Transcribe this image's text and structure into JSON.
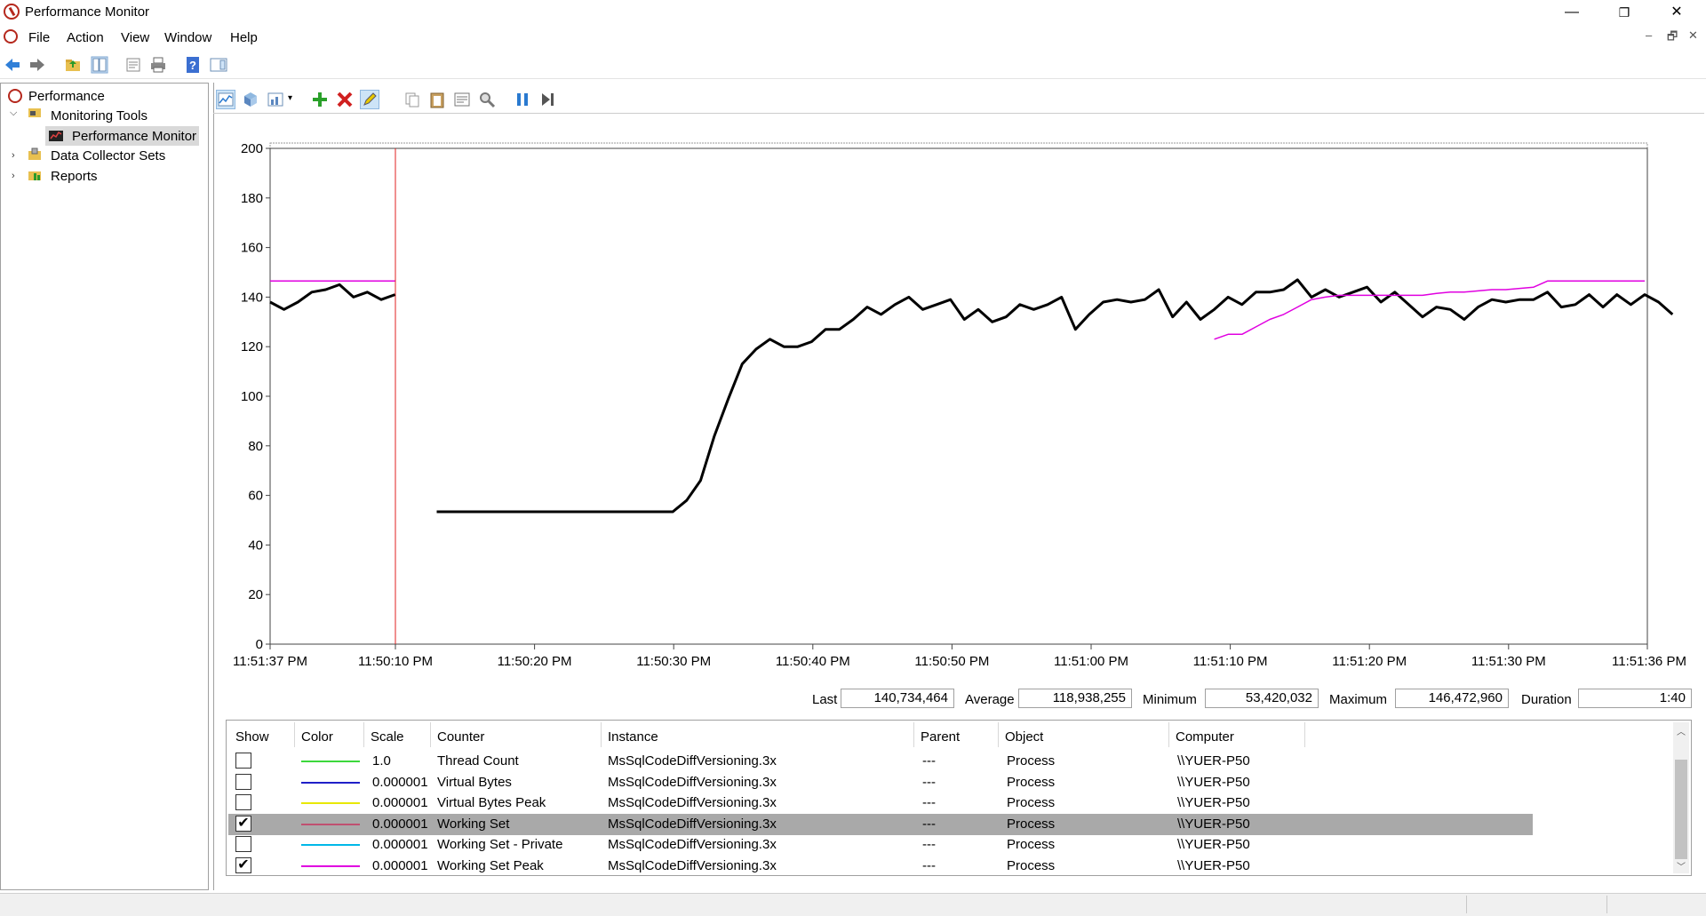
{
  "window": {
    "title": "Performance Monitor",
    "controls": [
      "—",
      "❐",
      "✕"
    ]
  },
  "menu": {
    "items": [
      "File",
      "Action",
      "View",
      "Window",
      "Help"
    ],
    "mdi_controls": [
      "–",
      "🗗",
      "✕"
    ]
  },
  "tree": {
    "root": "Performance",
    "items": [
      {
        "label": "Monitoring Tools",
        "expanded": true
      },
      {
        "label": "Performance Monitor",
        "selected": true
      },
      {
        "label": "Data Collector Sets"
      },
      {
        "label": "Reports"
      }
    ]
  },
  "chart_data": {
    "type": "line",
    "ylim": [
      0,
      200
    ],
    "yticks": [
      "200",
      "180",
      "160",
      "140",
      "120",
      "100",
      "80",
      "60",
      "40",
      "20",
      "0"
    ],
    "xticks": [
      "11:51:37 PM",
      "11:50:10 PM",
      "11:50:20 PM",
      "11:50:30 PM",
      "11:50:40 PM",
      "11:50:50 PM",
      "11:51:00 PM",
      "11:51:10 PM",
      "11:51:20 PM",
      "11:51:30 PM",
      "11:51:36 PM"
    ],
    "grid": false,
    "series": [
      {
        "name": "Working Set",
        "color": "#000000",
        "segment_before_cursor": [
          138,
          135,
          138,
          142,
          143,
          145,
          140,
          142,
          139,
          141
        ],
        "segment_after_cursor": [
          53.4,
          53.4,
          53.4,
          53.4,
          53.4,
          53.4,
          53.4,
          53.4,
          53.4,
          53.4,
          53.4,
          53.4,
          53.4,
          53.4,
          53.4,
          53.4,
          53.4,
          53.4,
          58,
          66,
          84,
          99,
          113,
          119,
          123,
          120,
          120,
          122,
          127,
          127,
          131,
          136,
          133,
          137,
          140,
          135,
          137,
          139,
          131,
          135,
          130,
          132,
          137,
          135,
          137,
          140,
          127,
          133,
          138,
          139,
          138,
          139,
          143,
          132,
          138,
          131,
          135,
          140,
          137,
          142,
          142,
          143,
          147,
          140,
          143,
          140,
          142,
          144,
          138,
          142,
          137,
          132,
          136,
          135,
          131,
          136,
          139,
          138,
          139,
          139,
          142,
          136,
          137,
          141,
          136,
          141,
          137,
          141,
          138,
          133
        ]
      },
      {
        "name": "Working Set Peak",
        "color": "#e000e0",
        "segment_before_cursor": [
          146.5,
          146.5,
          146.5,
          146.5,
          146.5,
          146.5,
          146.5,
          146.5,
          146.5,
          146.5
        ],
        "segment_after_cursor": [
          123,
          125,
          125,
          128,
          131,
          133,
          136,
          139,
          140,
          140.7,
          140.7,
          140.7,
          140.7,
          140.7,
          140.7,
          140.7,
          141.5,
          142,
          142,
          142.5,
          143,
          143,
          143.5,
          144,
          146.5,
          146.5,
          146.5,
          146.5,
          146.5,
          146.5,
          146.5,
          146.5
        ]
      }
    ]
  },
  "stats": {
    "last_label": "Last",
    "last_value": "140,734,464",
    "average_label": "Average",
    "average_value": "118,938,255",
    "minimum_label": "Minimum",
    "minimum_value": "53,420,032",
    "maximum_label": "Maximum",
    "maximum_value": "146,472,960",
    "duration_label": "Duration",
    "duration_value": "1:40"
  },
  "counters": {
    "headers": [
      "Show",
      "Color",
      "Scale",
      "Counter",
      "Instance",
      "Parent",
      "Object",
      "Computer"
    ],
    "rows": [
      {
        "show": false,
        "color": "#3cd83c",
        "scale": "1.0",
        "counter": "Thread Count",
        "instance": "MsSqlCodeDiffVersioning.3x",
        "parent": "---",
        "object": "Process",
        "computer": "\\\\YUER-P50"
      },
      {
        "show": false,
        "color": "#2020c8",
        "scale": "0.000001",
        "counter": "Virtual Bytes",
        "instance": "MsSqlCodeDiffVersioning.3x",
        "parent": "---",
        "object": "Process",
        "computer": "\\\\YUER-P50"
      },
      {
        "show": false,
        "color": "#e8e800",
        "scale": "0.000001",
        "counter": "Virtual Bytes Peak",
        "instance": "MsSqlCodeDiffVersioning.3x",
        "parent": "---",
        "object": "Process",
        "computer": "\\\\YUER-P50"
      },
      {
        "show": true,
        "selected": true,
        "color": "#c05070",
        "scale": "0.000001",
        "counter": "Working Set",
        "instance": "MsSqlCodeDiffVersioning.3x",
        "parent": "---",
        "object": "Process",
        "computer": "\\\\YUER-P50"
      },
      {
        "show": false,
        "color": "#00b8e8",
        "scale": "0.000001",
        "counter": "Working Set - Private",
        "instance": "MsSqlCodeDiffVersioning.3x",
        "parent": "---",
        "object": "Process",
        "computer": "\\\\YUER-P50"
      },
      {
        "show": true,
        "color": "#e000e0",
        "scale": "0.000001",
        "counter": "Working Set Peak",
        "instance": "MsSqlCodeDiffVersioning.3x",
        "parent": "---",
        "object": "Process",
        "computer": "\\\\YUER-P50"
      }
    ]
  },
  "icons": {
    "toolbar1": [
      "back-icon",
      "forward-icon",
      "up-folder-icon",
      "show-hide-tree-icon",
      "properties-icon",
      "print-icon",
      "help-icon",
      "show-hide-action-pane-icon"
    ],
    "toolbar2": [
      "view-current-activity-icon",
      "view-log-data-icon",
      "change-graph-type-icon",
      "add-counter-icon",
      "delete-counter-icon",
      "highlight-icon",
      "copy-properties-icon",
      "paste-counter-list-icon",
      "properties-icon",
      "zoom-icon",
      "freeze-display-icon",
      "update-data-icon"
    ]
  }
}
